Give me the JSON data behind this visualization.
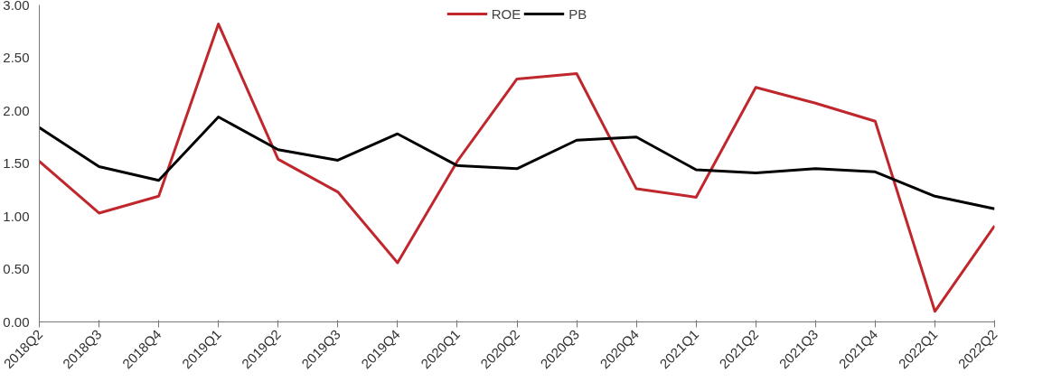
{
  "chart_data": {
    "type": "line",
    "categories": [
      "2018Q2",
      "2018Q3",
      "2018Q4",
      "2019Q1",
      "2019Q2",
      "2019Q3",
      "2019Q4",
      "2020Q1",
      "2020Q2",
      "2020Q3",
      "2020Q4",
      "2021Q1",
      "2021Q2",
      "2021Q3",
      "2021Q4",
      "2022Q1",
      "2022Q2"
    ],
    "series": [
      {
        "name": "ROE",
        "color": "#c0272d",
        "values": [
          1.52,
          1.03,
          1.19,
          2.82,
          1.54,
          1.23,
          0.56,
          1.52,
          2.3,
          2.35,
          1.26,
          1.18,
          2.22,
          2.07,
          1.9,
          0.1,
          0.91
        ]
      },
      {
        "name": "PB",
        "color": "#000000",
        "values": [
          1.84,
          1.47,
          1.34,
          1.94,
          1.63,
          1.53,
          1.78,
          1.48,
          1.45,
          1.72,
          1.75,
          1.44,
          1.41,
          1.45,
          1.42,
          1.19,
          1.07
        ]
      }
    ],
    "ylim": [
      0,
      3
    ],
    "yticks": [
      {
        "value": 0,
        "label": "0.00"
      },
      {
        "value": 0.5,
        "label": "0.50"
      },
      {
        "value": 1,
        "label": "1.00"
      },
      {
        "value": 1.5,
        "label": "1.50"
      },
      {
        "value": 2,
        "label": "2.00"
      },
      {
        "value": 2.5,
        "label": "2.50"
      },
      {
        "value": 3,
        "label": "3.00"
      }
    ],
    "grid": false,
    "legend": "top",
    "marker": "none",
    "line_style": "solid"
  }
}
